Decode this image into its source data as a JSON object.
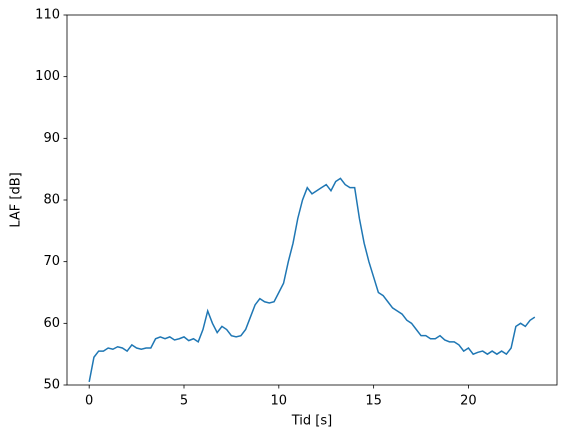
{
  "chart_data": {
    "type": "line",
    "xlabel": "Tid [s]",
    "ylabel": "LAF [dB]",
    "x": [
      0,
      0.25,
      0.5,
      0.75,
      1,
      1.25,
      1.5,
      1.75,
      2,
      2.25,
      2.5,
      2.75,
      3,
      3.25,
      3.5,
      3.75,
      4,
      4.25,
      4.5,
      4.75,
      5,
      5.25,
      5.5,
      5.75,
      6,
      6.25,
      6.5,
      6.75,
      7,
      7.25,
      7.5,
      7.75,
      8,
      8.25,
      8.5,
      8.75,
      9,
      9.25,
      9.5,
      9.75,
      10,
      10.25,
      10.5,
      10.75,
      11,
      11.25,
      11.5,
      11.75,
      12,
      12.25,
      12.5,
      12.75,
      13,
      13.25,
      13.5,
      13.75,
      14,
      14.25,
      14.5,
      14.75,
      15,
      15.25,
      15.5,
      15.75,
      16,
      16.25,
      16.5,
      16.75,
      17,
      17.25,
      17.5,
      17.75,
      18,
      18.25,
      18.5,
      18.75,
      19,
      19.25,
      19.5,
      19.75,
      20,
      20.25,
      20.5,
      20.75,
      21,
      21.25,
      21.5,
      21.75,
      22,
      22.25,
      22.5,
      22.75,
      23,
      23.25,
      23.5
    ],
    "series": [
      {
        "name": "LAF",
        "color": "#1f77b4",
        "values": [
          50.5,
          54.5,
          55.5,
          55.5,
          56,
          55.8,
          56.2,
          56,
          55.5,
          56.5,
          56,
          55.8,
          56,
          56,
          57.5,
          57.8,
          57.5,
          57.8,
          57.3,
          57.5,
          57.8,
          57.2,
          57.5,
          57,
          59,
          62,
          60,
          58.5,
          59.5,
          59,
          58,
          57.8,
          58,
          59,
          61,
          63,
          64,
          63.5,
          63.3,
          63.5,
          65,
          66.5,
          70,
          73,
          77,
          80,
          82,
          81,
          81.5,
          82,
          82.5,
          81.5,
          83,
          83.5,
          82.5,
          82,
          82,
          77,
          73,
          70,
          67.5,
          65,
          64.5,
          63.5,
          62.5,
          62,
          61.5,
          60.5,
          60,
          59,
          58,
          58,
          57.5,
          57.5,
          58,
          57.3,
          57,
          57,
          56.5,
          55.5,
          56,
          55,
          55.3,
          55.5,
          55,
          55.5,
          55,
          55.5,
          55,
          56,
          59.5,
          60,
          59.5,
          60.5,
          61
        ]
      }
    ],
    "xlim": [
      -1.17,
      24.67
    ],
    "xticks": [
      0,
      5,
      10,
      15,
      20
    ],
    "ylim": [
      50,
      110
    ],
    "yticks": [
      50,
      60,
      70,
      80,
      90,
      100,
      110
    ]
  }
}
